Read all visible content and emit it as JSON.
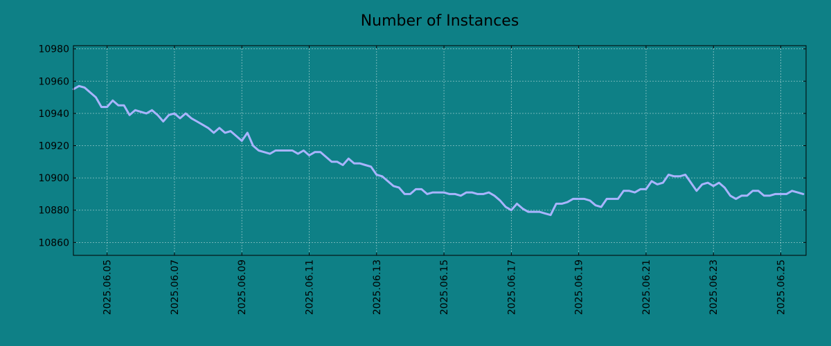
{
  "chart_data": {
    "type": "line",
    "title": "Number of Instances",
    "xlabel": "",
    "ylabel": "",
    "grid": true,
    "legend": "none",
    "colors": {
      "background": "#0e8086",
      "line": "#a9b4ff"
    },
    "xlim": [
      "2025-06-04 00:00",
      "2025-06-25 18:00"
    ],
    "ylim": [
      10852,
      10982
    ],
    "y_ticks": [
      10860,
      10880,
      10900,
      10920,
      10940,
      10960,
      10980
    ],
    "x_ticks": [
      "2025.06.05",
      "2025.06.07",
      "2025.06.09",
      "2025.06.11",
      "2025.06.13",
      "2025.06.15",
      "2025.06.17",
      "2025.06.19",
      "2025.06.21",
      "2025.06.23",
      "2025.06.25"
    ],
    "series": [
      {
        "x": [
          "2025-06-04 00:00",
          "2025-06-04 04:00",
          "2025-06-04 08:00",
          "2025-06-04 12:00",
          "2025-06-04 16:00",
          "2025-06-04 20:00",
          "2025-06-05 00:00",
          "2025-06-05 04:00",
          "2025-06-05 08:00",
          "2025-06-05 12:00",
          "2025-06-05 16:00",
          "2025-06-05 20:00",
          "2025-06-06 00:00",
          "2025-06-06 04:00",
          "2025-06-06 08:00",
          "2025-06-06 12:00",
          "2025-06-06 16:00",
          "2025-06-06 20:00",
          "2025-06-07 00:00",
          "2025-06-07 04:00",
          "2025-06-07 08:00",
          "2025-06-07 12:00",
          "2025-06-07 16:00",
          "2025-06-07 20:00",
          "2025-06-08 00:00",
          "2025-06-08 04:00",
          "2025-06-08 08:00",
          "2025-06-08 12:00",
          "2025-06-08 16:00",
          "2025-06-08 20:00",
          "2025-06-09 00:00",
          "2025-06-09 04:00",
          "2025-06-09 08:00",
          "2025-06-09 12:00",
          "2025-06-09 16:00",
          "2025-06-09 20:00",
          "2025-06-10 00:00",
          "2025-06-10 04:00",
          "2025-06-10 08:00",
          "2025-06-10 12:00",
          "2025-06-10 16:00",
          "2025-06-10 20:00",
          "2025-06-11 00:00",
          "2025-06-11 04:00",
          "2025-06-11 08:00",
          "2025-06-11 12:00",
          "2025-06-11 16:00",
          "2025-06-11 20:00",
          "2025-06-12 00:00",
          "2025-06-12 04:00",
          "2025-06-12 08:00",
          "2025-06-12 12:00",
          "2025-06-12 16:00",
          "2025-06-12 20:00",
          "2025-06-13 00:00",
          "2025-06-13 04:00",
          "2025-06-13 08:00",
          "2025-06-13 12:00",
          "2025-06-13 16:00",
          "2025-06-13 20:00",
          "2025-06-14 00:00",
          "2025-06-14 04:00",
          "2025-06-14 08:00",
          "2025-06-14 12:00",
          "2025-06-14 16:00",
          "2025-06-14 20:00",
          "2025-06-15 00:00",
          "2025-06-15 04:00",
          "2025-06-15 08:00",
          "2025-06-15 12:00",
          "2025-06-15 16:00",
          "2025-06-15 20:00",
          "2025-06-16 00:00",
          "2025-06-16 04:00",
          "2025-06-16 08:00",
          "2025-06-16 12:00",
          "2025-06-16 16:00",
          "2025-06-16 20:00",
          "2025-06-17 00:00",
          "2025-06-17 04:00",
          "2025-06-17 08:00",
          "2025-06-17 12:00",
          "2025-06-17 16:00",
          "2025-06-17 20:00",
          "2025-06-18 00:00",
          "2025-06-18 04:00",
          "2025-06-18 08:00",
          "2025-06-18 12:00",
          "2025-06-18 16:00",
          "2025-06-18 20:00",
          "2025-06-19 00:00",
          "2025-06-19 04:00",
          "2025-06-19 08:00",
          "2025-06-19 12:00",
          "2025-06-19 16:00",
          "2025-06-19 20:00",
          "2025-06-20 00:00",
          "2025-06-20 04:00",
          "2025-06-20 08:00",
          "2025-06-20 12:00",
          "2025-06-20 16:00",
          "2025-06-20 20:00",
          "2025-06-21 00:00",
          "2025-06-21 04:00",
          "2025-06-21 08:00",
          "2025-06-21 12:00",
          "2025-06-21 16:00",
          "2025-06-21 20:00",
          "2025-06-22 00:00",
          "2025-06-22 04:00",
          "2025-06-22 08:00",
          "2025-06-22 12:00",
          "2025-06-22 16:00",
          "2025-06-22 20:00",
          "2025-06-23 00:00",
          "2025-06-23 04:00",
          "2025-06-23 08:00",
          "2025-06-23 12:00",
          "2025-06-23 16:00",
          "2025-06-23 20:00",
          "2025-06-24 00:00",
          "2025-06-24 04:00",
          "2025-06-24 08:00",
          "2025-06-24 12:00",
          "2025-06-24 16:00",
          "2025-06-24 20:00",
          "2025-06-25 00:00",
          "2025-06-25 04:00",
          "2025-06-25 08:00",
          "2025-06-25 12:00",
          "2025-06-25 16:00"
        ],
        "y": [
          10955,
          10957,
          10956,
          10953,
          10950,
          10944,
          10944,
          10948,
          10945,
          10945,
          10939,
          10942,
          10941,
          10940,
          10942,
          10939,
          10935,
          10939,
          10940,
          10937,
          10940,
          10937,
          10935,
          10933,
          10931,
          10928,
          10931,
          10928,
          10929,
          10926,
          10923,
          10928,
          10920,
          10917,
          10916,
          10915,
          10917,
          10917,
          10917,
          10917,
          10915,
          10917,
          10914,
          10916,
          10916,
          10913,
          10910,
          10910,
          10908,
          10912,
          10909,
          10909,
          10908,
          10907,
          10902,
          10901,
          10898,
          10895,
          10894,
          10890,
          10890,
          10893,
          10893,
          10890,
          10891,
          10891,
          10891,
          10890,
          10890,
          10889,
          10891,
          10891,
          10890,
          10890,
          10891,
          10889,
          10886,
          10882,
          10880,
          10884,
          10881,
          10879,
          10879,
          10879,
          10878,
          10877,
          10884,
          10884,
          10885,
          10887,
          10887,
          10887,
          10886,
          10883,
          10882,
          10887,
          10887,
          10887,
          10892,
          10892,
          10891,
          10893,
          10893,
          10898,
          10896,
          10897,
          10902,
          10901,
          10901,
          10902,
          10897,
          10892,
          10896,
          10897,
          10895,
          10897,
          10894,
          10889,
          10887,
          10889,
          10889,
          10892,
          10892,
          10889,
          10889,
          10890,
          10890,
          10890,
          10892,
          10891,
          10890
        ]
      }
    ]
  }
}
